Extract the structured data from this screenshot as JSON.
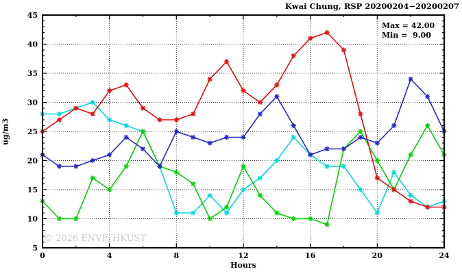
{
  "title": "Kwai Chung, RSP 20200204−20200207",
  "stats": {
    "max_label": "Max = 42.00",
    "min_label": "Min =  9.00"
  },
  "watermark": "© 2026 ENVF, HKUST",
  "chart_data": {
    "type": "line",
    "title": "Kwai Chung, RSP 20200204−20200207",
    "xlabel": "Hours",
    "ylabel": "ug/m3",
    "xlim": [
      0,
      24
    ],
    "ylim": [
      5,
      45
    ],
    "x_major_ticks": [
      0,
      4,
      8,
      12,
      16,
      20,
      24
    ],
    "x_minor_step": 2,
    "y_major_ticks": [
      5,
      10,
      15,
      20,
      25,
      30,
      35,
      40,
      45
    ],
    "y_minor_step": 1,
    "grid": true,
    "grid_style": "dotted",
    "legend_position": "none",
    "marker": "asterisk",
    "x": [
      0,
      1,
      2,
      3,
      4,
      5,
      6,
      7,
      8,
      9,
      10,
      11,
      12,
      13,
      14,
      15,
      16,
      17,
      18,
      19,
      20,
      21,
      22,
      23,
      24
    ],
    "series": [
      {
        "name": "series-cyan",
        "color": "#00d9e0",
        "values": [
          28,
          28,
          29,
          30,
          27,
          26,
          25,
          19,
          11,
          11,
          14,
          11,
          15,
          17,
          20,
          24,
          21,
          19,
          19,
          15,
          11,
          18,
          14,
          12,
          13
        ]
      },
      {
        "name": "series-green",
        "color": "#00d400",
        "values": [
          13,
          10,
          10,
          17,
          15,
          19,
          25,
          19,
          18,
          16,
          10,
          12,
          19,
          14,
          11,
          10,
          10,
          9,
          22,
          25,
          20,
          15,
          21,
          26,
          21
        ]
      },
      {
        "name": "series-blue",
        "color": "#2626cc",
        "values": [
          21,
          19,
          19,
          20,
          21,
          24,
          22,
          19,
          25,
          24,
          23,
          24,
          24,
          28,
          31,
          26,
          21,
          22,
          22,
          24,
          23,
          26,
          34,
          31,
          25
        ]
      },
      {
        "name": "series-red",
        "color": "#e80b0b",
        "values": [
          25,
          27,
          29,
          28,
          32,
          33,
          29,
          27,
          27,
          28,
          34,
          37,
          32,
          30,
          33,
          38,
          41,
          42,
          39,
          28,
          17,
          15,
          13,
          12,
          12
        ]
      }
    ],
    "annotations": {
      "max": "Max = 42.00",
      "min": "Min =  9.00"
    }
  }
}
